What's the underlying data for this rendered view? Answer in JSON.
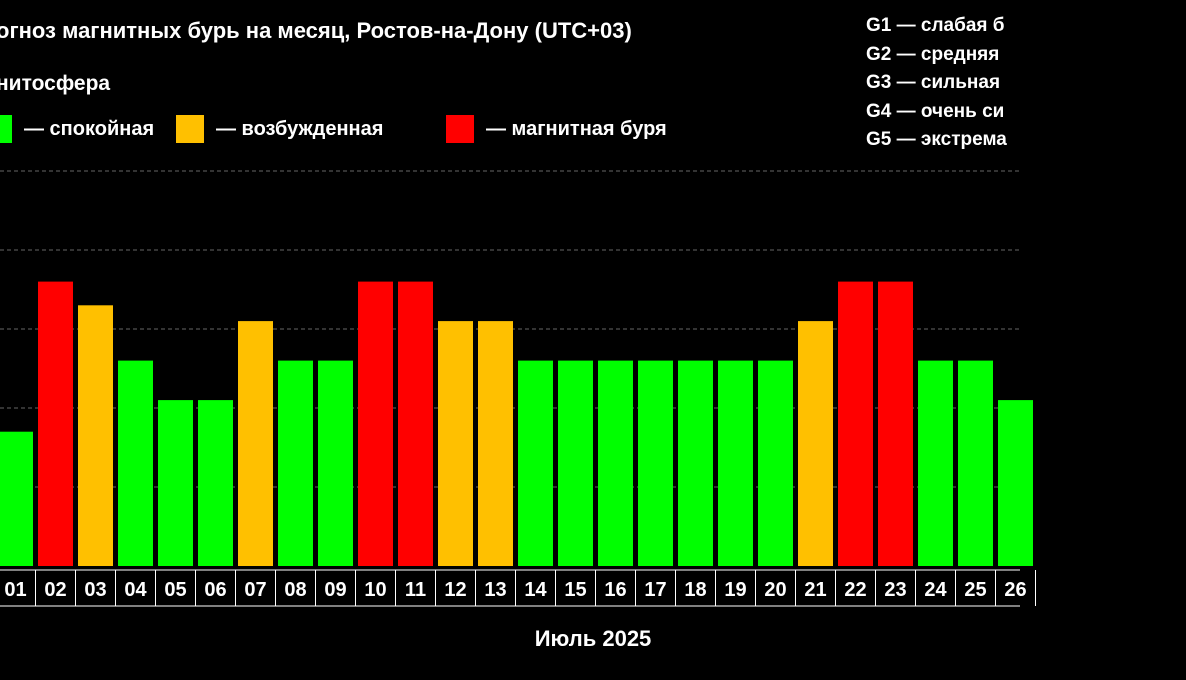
{
  "header": {
    "title": "огноз магнитных бурь на месяц, Ростов-на-Дону (UTC+03)",
    "subtitle": "нитосфера"
  },
  "legend": [
    {
      "label": "— спокойная",
      "color": "#00ff00"
    },
    {
      "label": "— возбужденная",
      "color": "#ffc000"
    },
    {
      "label": "— магнитная буря",
      "color": "#ff0000"
    }
  ],
  "g_legend": [
    "G1 — слабая б",
    "G2 — средняя",
    "G3 — сильная",
    "G4 — очень си",
    "G5 — экстрема"
  ],
  "chart_data": {
    "type": "bar",
    "xlabel": "Июль 2025",
    "ylabel": "",
    "ylim": [
      0,
      5
    ],
    "grid": true,
    "categories": [
      "01",
      "02",
      "03",
      "04",
      "05",
      "06",
      "07",
      "08",
      "09",
      "10",
      "11",
      "12",
      "13",
      "14",
      "15",
      "16",
      "17",
      "18",
      "19",
      "20",
      "21",
      "22",
      "23",
      "24",
      "25",
      "26"
    ],
    "values": [
      1.7,
      3.6,
      3.3,
      2.6,
      2.1,
      2.1,
      3.1,
      2.6,
      2.6,
      3.6,
      3.6,
      3.1,
      3.1,
      2.6,
      2.6,
      2.6,
      2.6,
      2.6,
      2.6,
      2.6,
      3.1,
      3.6,
      3.6,
      2.6,
      2.6,
      2.1
    ],
    "states": [
      "calm",
      "storm",
      "excited",
      "calm",
      "calm",
      "calm",
      "excited",
      "calm",
      "calm",
      "storm",
      "storm",
      "excited",
      "excited",
      "calm",
      "calm",
      "calm",
      "calm",
      "calm",
      "calm",
      "calm",
      "excited",
      "storm",
      "storm",
      "calm",
      "calm",
      "calm"
    ],
    "colors": {
      "calm": "#00ff00",
      "excited": "#ffc000",
      "storm": "#ff0000"
    },
    "grid_color": "#666666",
    "axis_color": "#ffffff"
  }
}
